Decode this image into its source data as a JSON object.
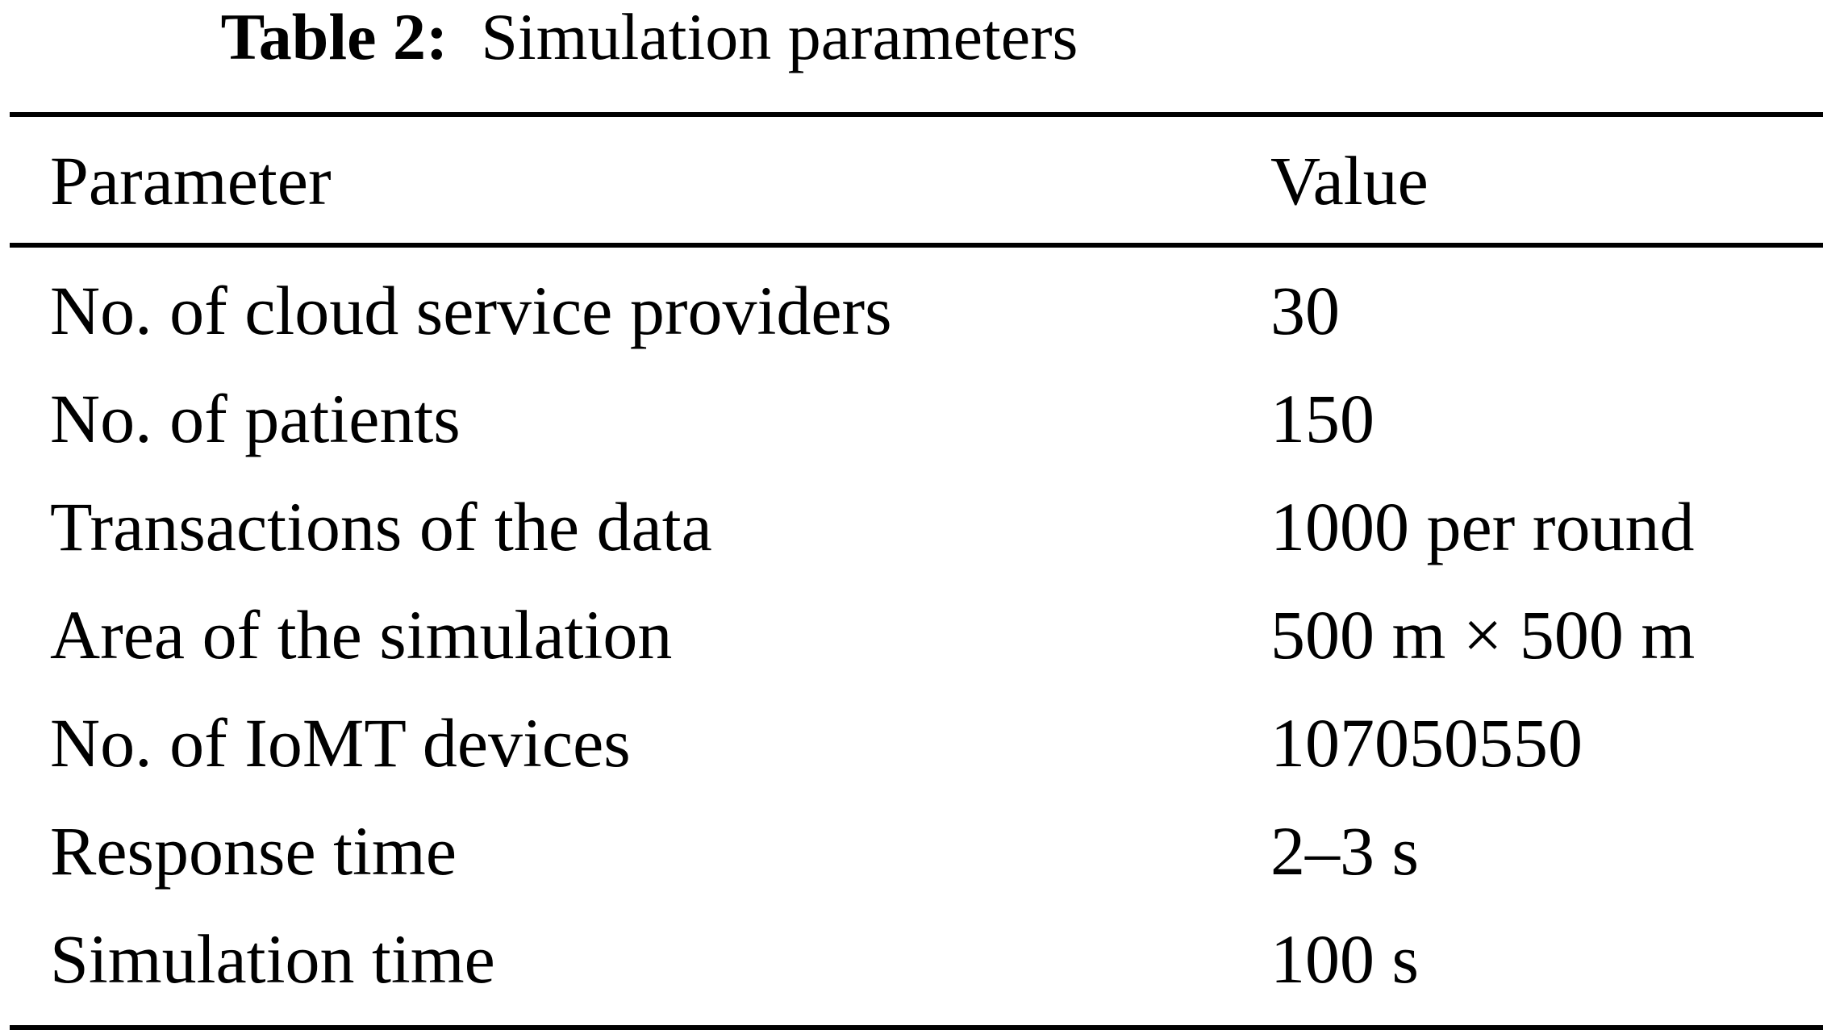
{
  "table": {
    "caption": {
      "label": "Table 2:",
      "title": "Simulation parameters"
    },
    "headers": {
      "parameter": "Parameter",
      "value": "Value"
    },
    "rows": [
      {
        "parameter": "No. of cloud service providers",
        "value": "30"
      },
      {
        "parameter": "No. of patients",
        "value": "150"
      },
      {
        "parameter": "Transactions of the data",
        "value": "1000 per round"
      },
      {
        "parameter": "Area of the simulation",
        "value": "500 m × 500 m"
      },
      {
        "parameter": "No. of IoMT devices",
        "value": "107050550"
      },
      {
        "parameter": "Response time",
        "value": "2–3 s"
      },
      {
        "parameter": "Simulation time",
        "value": "100 s"
      }
    ]
  }
}
